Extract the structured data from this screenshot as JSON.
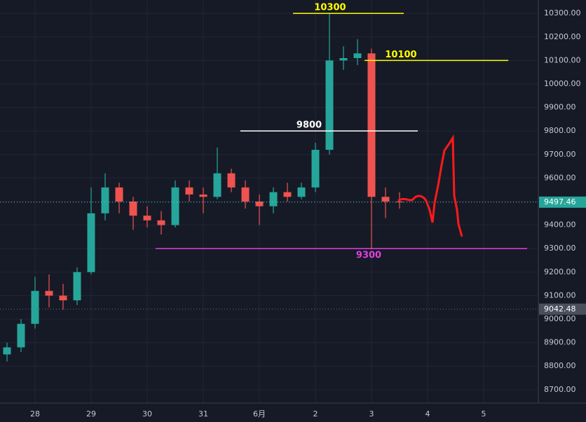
{
  "chart_data": {
    "type": "candlestick",
    "x": [
      -0.5,
      -0.25,
      0,
      0.25,
      0.5,
      0.75,
      1,
      1.25,
      1.5,
      1.75,
      2,
      2.25,
      2.5,
      2.75,
      3,
      3.25,
      3.5,
      3.75,
      4,
      4.25,
      4.5,
      4.75,
      5,
      5.25,
      5.5,
      5.75,
      6,
      6.25,
      6.5
    ],
    "open": [
      8850,
      8880,
      8980,
      9120,
      9100,
      9080,
      9200,
      9450,
      9560,
      9500,
      9440,
      9420,
      9400,
      9560,
      9530,
      9520,
      9620,
      9560,
      9500,
      9480,
      9540,
      9520,
      9560,
      9720,
      10100,
      10110,
      10130,
      9520,
      9500
    ],
    "high": [
      8900,
      9000,
      9180,
      9190,
      9150,
      9220,
      9560,
      9620,
      9580,
      9520,
      9480,
      9460,
      9590,
      9590,
      9560,
      9730,
      9640,
      9590,
      9530,
      9560,
      9580,
      9580,
      9750,
      10300,
      10160,
      10190,
      10150,
      9560,
      9540
    ],
    "low": [
      8820,
      8860,
      8960,
      9050,
      9040,
      9060,
      9190,
      9420,
      9450,
      9380,
      9390,
      9360,
      9390,
      9500,
      9450,
      9510,
      9540,
      9470,
      9400,
      9450,
      9500,
      9510,
      9540,
      9700,
      10060,
      10080,
      9300,
      9430,
      9470
    ],
    "close": [
      8880,
      8980,
      9120,
      9100,
      9080,
      9200,
      9450,
      9560,
      9500,
      9440,
      9420,
      9400,
      9560,
      9530,
      9520,
      9620,
      9560,
      9500,
      9480,
      9540,
      9520,
      9560,
      9720,
      10100,
      10110,
      10130,
      9520,
      9500,
      9497.46
    ],
    "up_color": "#26a69a",
    "down_color": "#ef5350",
    "xlim": [
      -0.625,
      8.975
    ],
    "xticks": [
      {
        "value": 0,
        "label": "28"
      },
      {
        "value": 1,
        "label": "29"
      },
      {
        "value": 2,
        "label": "30"
      },
      {
        "value": 3,
        "label": "31"
      },
      {
        "value": 4,
        "label": "6月"
      },
      {
        "value": 5,
        "label": "2"
      },
      {
        "value": 6,
        "label": "3"
      },
      {
        "value": 7,
        "label": "4"
      },
      {
        "value": 8,
        "label": "5"
      }
    ],
    "ylim": [
      8643,
      10357
    ],
    "yticks": [
      {
        "value": 8700,
        "label": "8700.00"
      },
      {
        "value": 8800,
        "label": "8800.00"
      },
      {
        "value": 8900,
        "label": "8900.00"
      },
      {
        "value": 9000,
        "label": "9000.00"
      },
      {
        "value": 9100,
        "label": "9100.00"
      },
      {
        "value": 9200,
        "label": "9200.00"
      },
      {
        "value": 9300,
        "label": "9300.00"
      },
      {
        "value": 9400,
        "label": "9400.00"
      },
      {
        "value": 9500,
        "label": "9500.00"
      },
      {
        "value": 9600,
        "label": "9600.00"
      },
      {
        "value": 9700,
        "label": "9700.00"
      },
      {
        "value": 9800,
        "label": "9800.00"
      },
      {
        "value": 9900,
        "label": "9900.00"
      },
      {
        "value": 10000,
        "label": "10000.00"
      },
      {
        "value": 10100,
        "label": "10100.00"
      },
      {
        "value": 10200,
        "label": "10200.00"
      },
      {
        "value": 10300,
        "label": "10300.00"
      }
    ],
    "grid": true,
    "levels": [
      {
        "value": 10300,
        "color": "#ffff00",
        "x": [
          4.6,
          6.575
        ]
      },
      {
        "value": 10100,
        "color": "#ffff00",
        "x": [
          5.875,
          8.44
        ]
      },
      {
        "value": 9800,
        "color": "#ffffff",
        "x": [
          3.66,
          6.825
        ]
      },
      {
        "value": 9300,
        "color": "#e040e0",
        "x": [
          2.15,
          8.775
        ]
      }
    ],
    "price_markers": [
      {
        "value": 9497.46,
        "color": "#26a69a",
        "line": "#4dd0d0"
      },
      {
        "value": 9042.48,
        "color": "#4a4f5e",
        "line": "#6a6f7e"
      }
    ]
  }
}
